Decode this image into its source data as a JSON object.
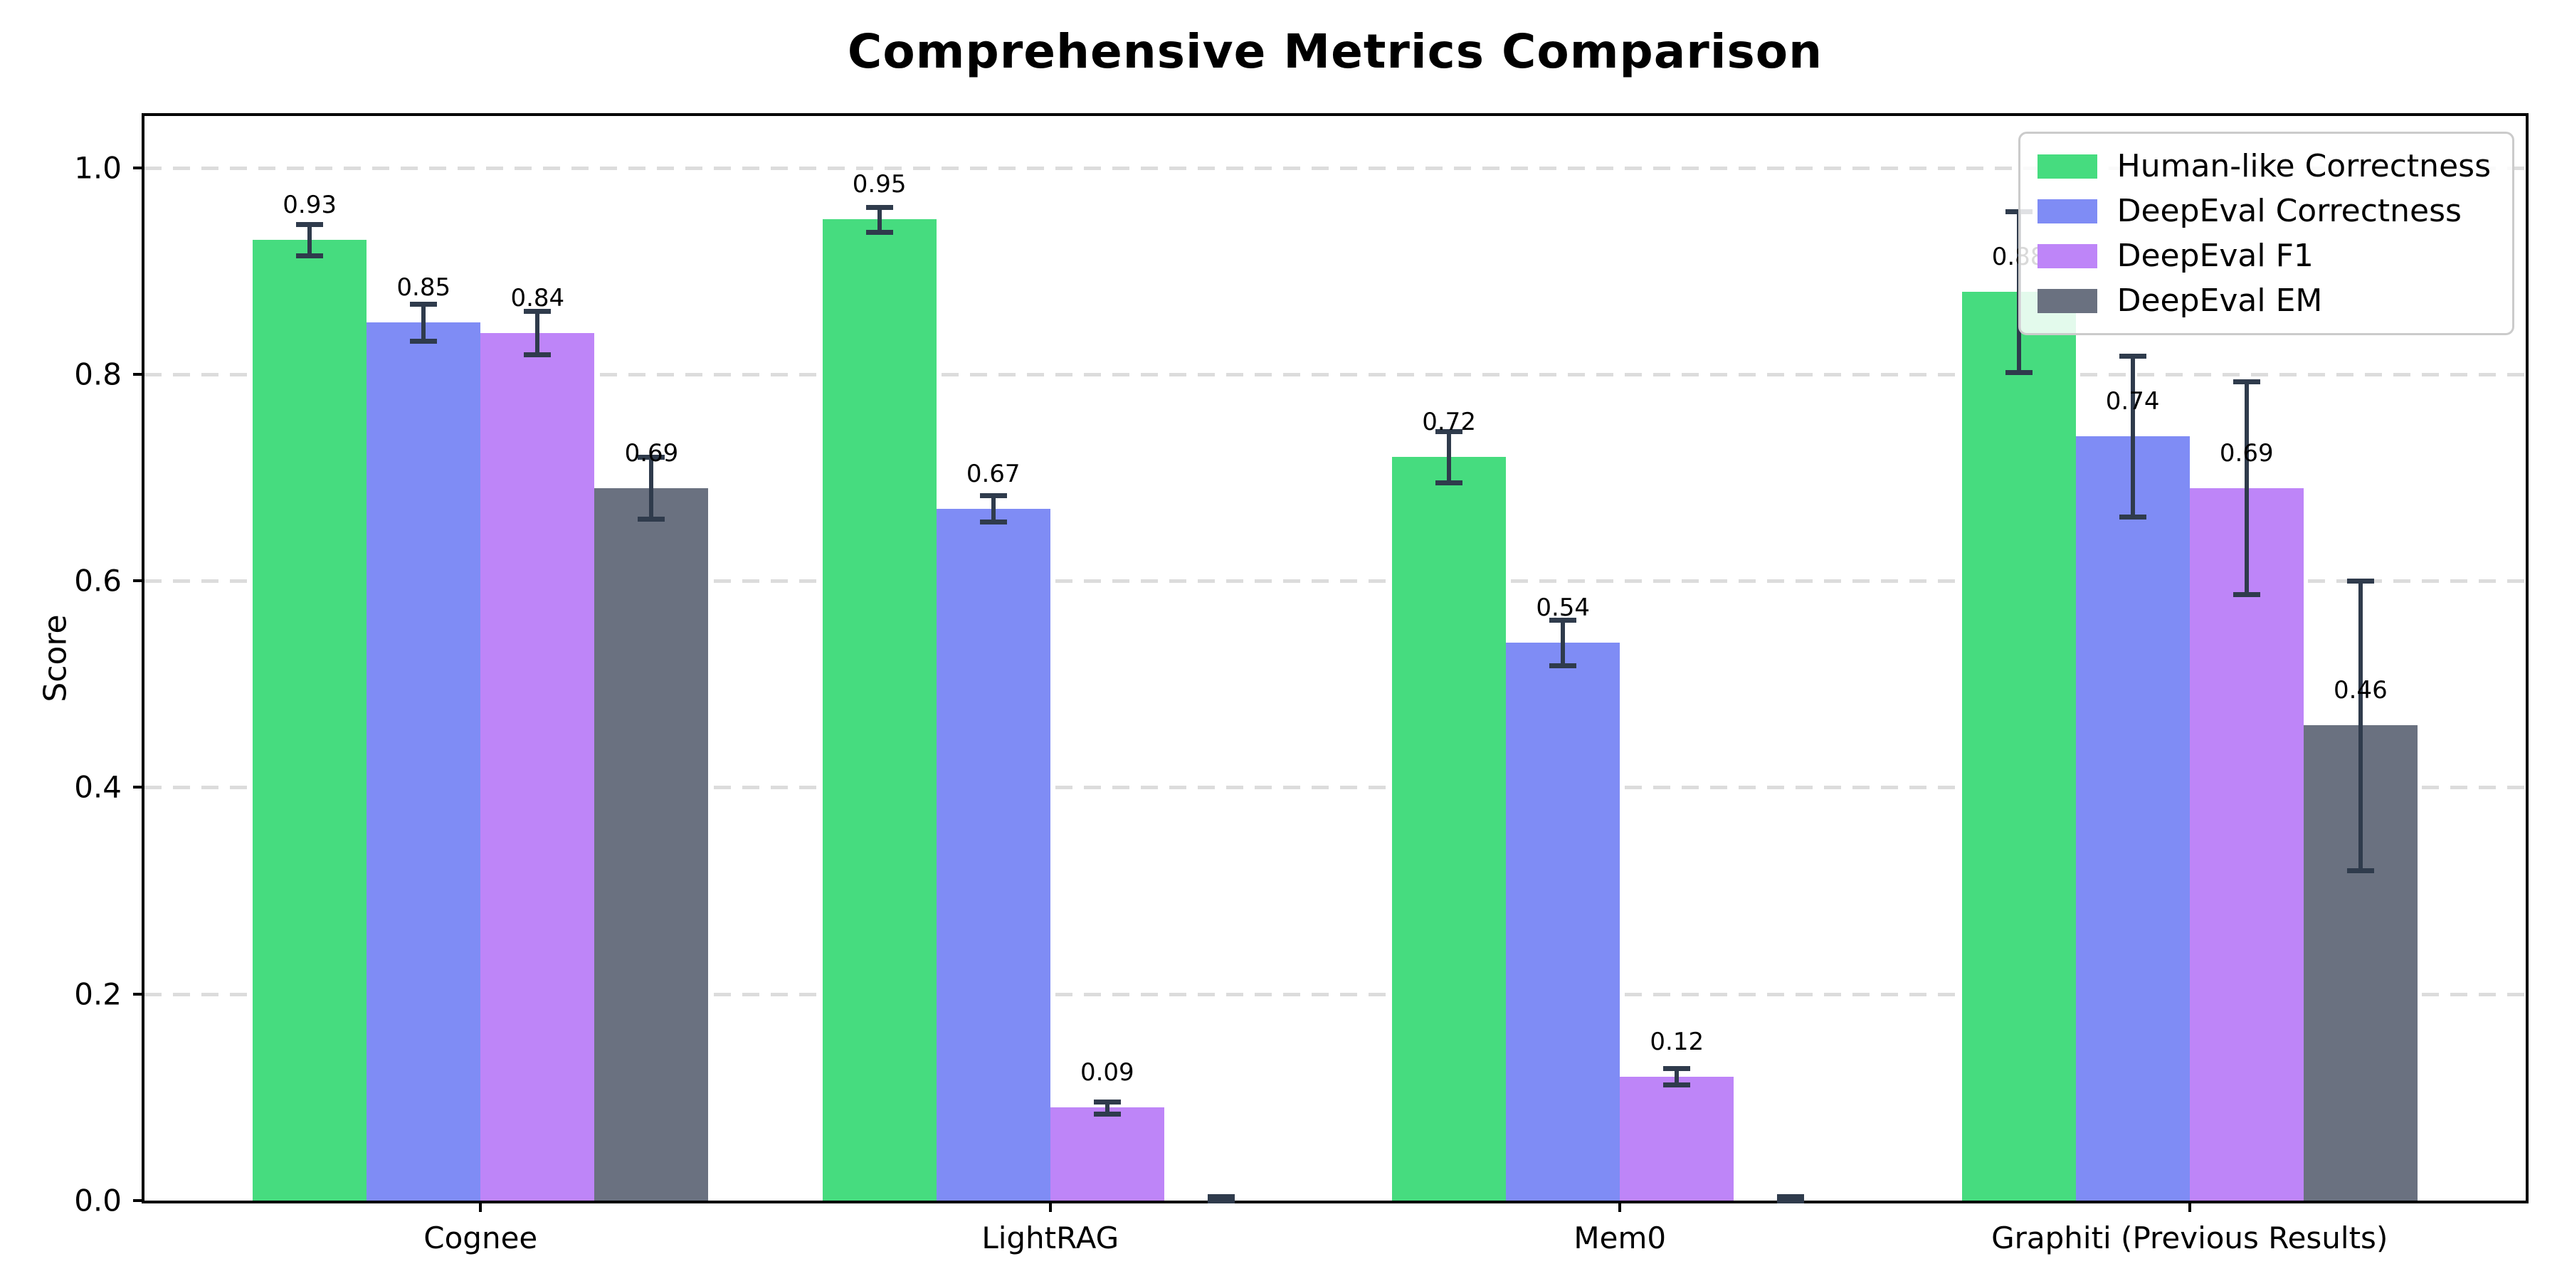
{
  "title": "Comprehensive Metrics Comparison",
  "ylabel": "Score",
  "chart_data": {
    "type": "bar",
    "categories": [
      "Cognee",
      "LightRAG",
      "Mem0",
      "Graphiti (Previous Results)"
    ],
    "series": [
      {
        "name": "Human-like Correctness",
        "color": "#46DC7F",
        "values": [
          0.93,
          0.95,
          0.72,
          0.88
        ],
        "errors": [
          0.015,
          0.012,
          0.025,
          0.078
        ],
        "labels": [
          "0.93",
          "0.95",
          "0.72",
          "0.88"
        ]
      },
      {
        "name": "DeepEval Correctness",
        "color": "#7F8CF5",
        "values": [
          0.85,
          0.67,
          0.54,
          0.74
        ],
        "errors": [
          0.018,
          0.013,
          0.022,
          0.078
        ],
        "labels": [
          "0.85",
          "0.67",
          "0.54",
          "0.74"
        ]
      },
      {
        "name": "DeepEval F1",
        "color": "#BE85F8",
        "values": [
          0.84,
          0.09,
          0.12,
          0.69
        ],
        "errors": [
          0.021,
          0.006,
          0.008,
          0.103
        ],
        "labels": [
          "0.84",
          "0.09",
          "0.12",
          "0.69"
        ]
      },
      {
        "name": "DeepEval EM",
        "color": "#6A7180",
        "values": [
          0.69,
          0.0,
          0.0,
          0.46
        ],
        "errors": [
          0.03,
          0.004,
          0.004,
          0.14
        ],
        "labels": [
          "0.69",
          "",
          "",
          "0.46"
        ]
      }
    ],
    "yticks": [
      {
        "label": "0.0",
        "value": 0.0
      },
      {
        "label": "0.2",
        "value": 0.2
      },
      {
        "label": "0.4",
        "value": 0.4
      },
      {
        "label": "0.6",
        "value": 0.6
      },
      {
        "label": "0.8",
        "value": 0.8
      },
      {
        "label": "1.0",
        "value": 1.0
      }
    ],
    "ylim": [
      0,
      1.05
    ],
    "xlim": [
      -0.59,
      3.59
    ],
    "bar_width_units": 0.2,
    "grid": "dashed-horizontal",
    "legend_position": "upper-right",
    "xlabel": "",
    "errorbar_color": "#2F3B4C",
    "grid_color": "#dcdcdc",
    "label_offset_units": 0.02
  }
}
